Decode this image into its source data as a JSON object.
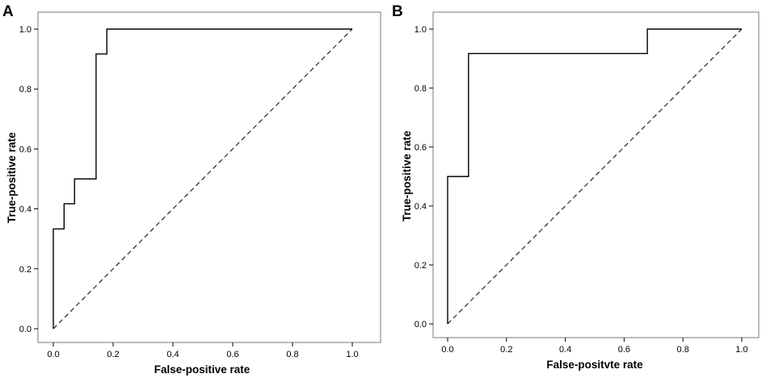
{
  "chart_data": [
    {
      "panel_label": "A",
      "type": "line",
      "xlabel": "False-positive rate",
      "ylabel": "True-positive rate",
      "xlim": [
        0,
        1
      ],
      "ylim": [
        0,
        1
      ],
      "x_ticks": [
        "0.0",
        "0.2",
        "0.4",
        "0.6",
        "0.8",
        "1.0"
      ],
      "y_ticks": [
        "0.0",
        "0.2",
        "0.4",
        "0.6",
        "0.8",
        "1.0"
      ],
      "grid": false,
      "series": [
        {
          "kind": "roc-step",
          "color": "#000000",
          "points": [
            [
              0,
              0
            ],
            [
              0,
              0.333
            ],
            [
              0.036,
              0.333
            ],
            [
              0.036,
              0.417
            ],
            [
              0.071,
              0.417
            ],
            [
              0.071,
              0.5
            ],
            [
              0.143,
              0.5
            ],
            [
              0.143,
              0.917
            ],
            [
              0.179,
              0.917
            ],
            [
              0.179,
              1.0
            ],
            [
              1.0,
              1.0
            ]
          ]
        },
        {
          "kind": "reference-diagonal",
          "color": "#000000",
          "points": [
            [
              0,
              0
            ],
            [
              1,
              1
            ]
          ]
        }
      ]
    },
    {
      "panel_label": "B",
      "type": "line",
      "xlabel": "False-positvte rate",
      "ylabel": "True-positive rate",
      "xlim": [
        0,
        1
      ],
      "ylim": [
        0,
        1
      ],
      "x_ticks": [
        "0.0",
        "0.2",
        "0.4",
        "0.6",
        "0.8",
        "1.0"
      ],
      "y_ticks": [
        "0.0",
        "0.2",
        "0.4",
        "0.6",
        "0.8",
        "1.0"
      ],
      "grid": false,
      "series": [
        {
          "kind": "roc-step",
          "color": "#000000",
          "points": [
            [
              0,
              0
            ],
            [
              0,
              0.5
            ],
            [
              0.071,
              0.5
            ],
            [
              0.071,
              0.917
            ],
            [
              0.679,
              0.917
            ],
            [
              0.679,
              1.0
            ],
            [
              1.0,
              1.0
            ]
          ]
        },
        {
          "kind": "reference-diagonal",
          "color": "#000000",
          "points": [
            [
              0,
              0
            ],
            [
              1,
              1
            ]
          ]
        }
      ]
    }
  ]
}
